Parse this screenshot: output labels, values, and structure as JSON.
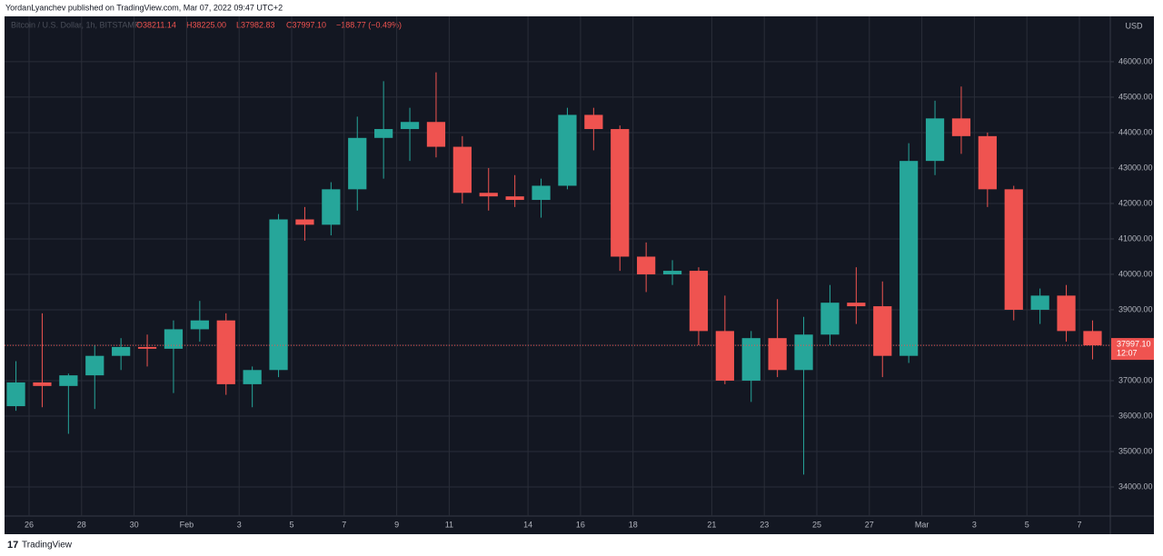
{
  "header": {
    "byline": "YordanLyanchev published on TradingView.com, Mar 07, 2022 09:47 UTC+2"
  },
  "footer": {
    "brand": "TradingView"
  },
  "chart_data": {
    "type": "candlestick",
    "symbol": "Bitcoin / U.S. Dollar, 1h, BITSTAMP",
    "ohlc_legend": [
      "O38211.14",
      "H38225.00",
      "L37982.83",
      "C37997.10",
      "−188.77 (−0.49%)"
    ],
    "currency": "USD",
    "categories": [
      null,
      "26",
      null,
      "28",
      null,
      "30",
      null,
      "Feb",
      null,
      "3",
      null,
      "5",
      null,
      "7",
      null,
      "9",
      null,
      "11",
      null,
      null,
      "14",
      null,
      "16",
      null,
      "18",
      null,
      null,
      "21",
      null,
      "23",
      null,
      "25",
      null,
      "27",
      null,
      "Mar",
      null,
      "3",
      null,
      "5",
      null,
      "7"
    ],
    "open": [
      36280,
      36950,
      36850,
      37150,
      37700,
      37950,
      37900,
      38450,
      38700,
      36900,
      37300,
      41550,
      41400,
      42400,
      43850,
      44100,
      44300,
      43600,
      42300,
      42200,
      42100,
      42500,
      44500,
      44100,
      40500,
      40000,
      40100,
      38400,
      37000,
      38200,
      37300,
      38300,
      39200,
      39100,
      37700,
      43200,
      44400,
      43900,
      42400,
      39000,
      39400,
      38400
    ],
    "high": [
      37550,
      38900,
      37200,
      38000,
      38200,
      38300,
      38700,
      39250,
      38900,
      37400,
      41700,
      41900,
      42600,
      44450,
      45450,
      44700,
      45700,
      43900,
      43000,
      42800,
      42700,
      44700,
      44700,
      44200,
      40900,
      40400,
      40200,
      39400,
      38400,
      39300,
      38800,
      39700,
      40200,
      39800,
      43700,
      44900,
      45300,
      44000,
      42500,
      39600,
      39700,
      38700
    ],
    "low": [
      36150,
      36250,
      35500,
      36200,
      37300,
      37400,
      36650,
      38100,
      36600,
      36250,
      37100,
      40950,
      41100,
      41800,
      42700,
      43200,
      43300,
      42000,
      41800,
      41900,
      41600,
      42400,
      43500,
      40100,
      39500,
      39700,
      38000,
      36900,
      36400,
      37100,
      34350,
      38000,
      38600,
      37100,
      37500,
      42800,
      43400,
      41900,
      38700,
      38600,
      38100,
      37600
    ],
    "close": [
      36950,
      36850,
      37150,
      37700,
      37950,
      37900,
      38450,
      38700,
      36900,
      37300,
      41550,
      41400,
      42400,
      43850,
      44100,
      44300,
      43600,
      42300,
      42200,
      42100,
      42500,
      44500,
      44100,
      40500,
      40000,
      40100,
      38400,
      37000,
      38200,
      37300,
      38300,
      39200,
      39100,
      37700,
      43200,
      44400,
      43900,
      42400,
      39000,
      39400,
      38400,
      37997.1
    ],
    "up_color": "#26a69a",
    "down_color": "#ef5350",
    "ylim": [
      33180,
      47280
    ],
    "yticks": [
      {
        "value": 34000,
        "label": "34000.00"
      },
      {
        "value": 35000,
        "label": "35000.00"
      },
      {
        "value": 36000,
        "label": "36000.00"
      },
      {
        "value": 37000,
        "label": "37000.00"
      },
      {
        "value": 38000,
        "label": "38000.00"
      },
      {
        "value": 39000,
        "label": "39000.00"
      },
      {
        "value": 40000,
        "label": "40000.00"
      },
      {
        "value": 41000,
        "label": "41000.00"
      },
      {
        "value": 42000,
        "label": "42000.00"
      },
      {
        "value": 43000,
        "label": "43000.00"
      },
      {
        "value": 44000,
        "label": "44000.00"
      },
      {
        "value": 45000,
        "label": "45000.00"
      },
      {
        "value": 46000,
        "label": "46000.00"
      }
    ],
    "grid": true,
    "last_price": {
      "value": 37997.1,
      "label": "37997.10"
    },
    "countdown": "12:07"
  }
}
